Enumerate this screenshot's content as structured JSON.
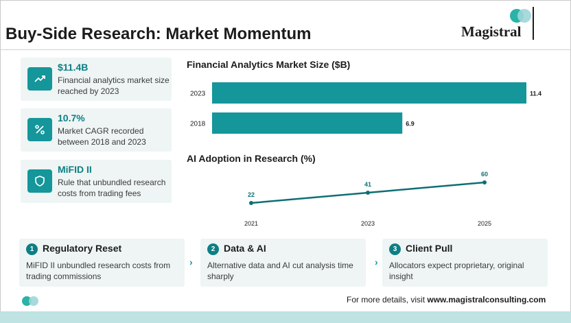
{
  "header": {
    "title": "Buy-Side Research: Market Momentum",
    "logo_text": "Magistral"
  },
  "stats": [
    {
      "value": "$11.4B",
      "desc": "Financial analytics market size reached by 2023",
      "icon": "trend-up-icon"
    },
    {
      "value": "10.7%",
      "desc": "Market CAGR recorded between 2018 and 2023",
      "icon": "percent-icon"
    },
    {
      "value": "MiFID II",
      "desc": "Rule that unbundled research costs from trading fees",
      "icon": "shield-icon"
    }
  ],
  "chart_data": [
    {
      "type": "bar",
      "orientation": "horizontal",
      "title": "Financial Analytics Market Size ($B)",
      "categories": [
        "2023",
        "2018"
      ],
      "values": [
        11.4,
        6.9
      ],
      "value_labels": [
        "11.4",
        "6.9"
      ],
      "color": "#14969a"
    },
    {
      "type": "line",
      "title": "AI Adoption in Research (%)",
      "x": [
        "2021",
        "2023",
        "2025"
      ],
      "values": [
        22,
        41,
        60
      ],
      "value_labels": [
        "22",
        "41",
        "60"
      ],
      "color": "#0d6f73"
    }
  ],
  "steps": [
    {
      "num": "1",
      "title": "Regulatory Reset",
      "desc": "MiFID II unbundled research costs from trading commissions"
    },
    {
      "num": "2",
      "title": "Data & AI",
      "desc": "Alternative data and AI cut analysis time sharply"
    },
    {
      "num": "3",
      "title": "Client Pull",
      "desc": "Allocators expect proprietary, original insight"
    }
  ],
  "footer": {
    "prefix": "For more details, visit ",
    "url": "www.magistralconsulting.com"
  },
  "colors": {
    "accent": "#14969a",
    "accent_dark": "#0d7f84",
    "card_bg": "#eef5f4",
    "strip": "#bfe2e3"
  }
}
